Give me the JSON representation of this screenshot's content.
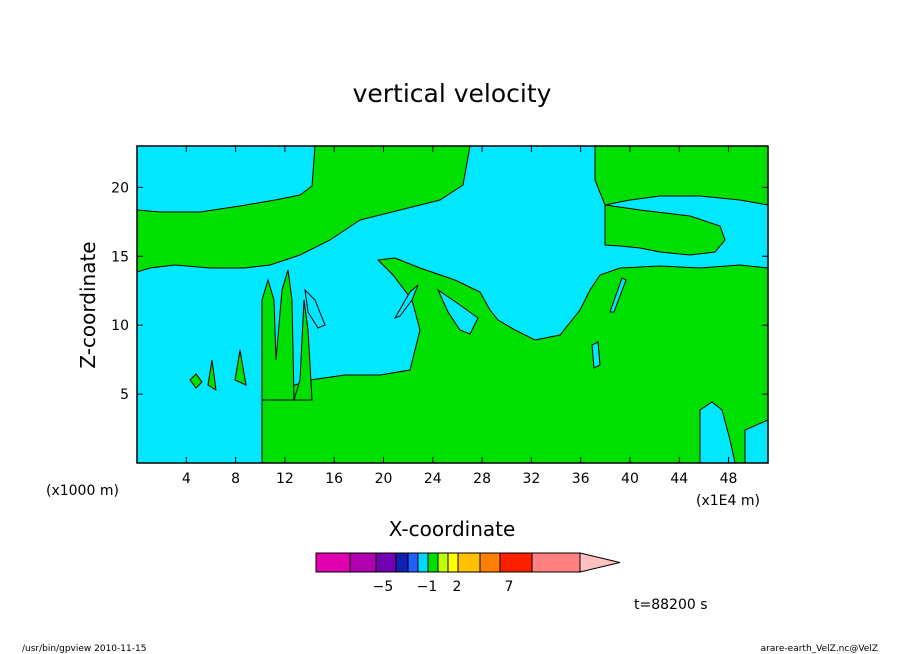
{
  "chart_data": {
    "type": "heatmap",
    "title": "vertical velocity",
    "xlabel": "X-coordinate",
    "ylabel": "Z-coordinate",
    "x_scale_note": "(x1000 m)",
    "x_unit_note": "(x1E4 m)",
    "x_ticks": [
      4,
      8,
      12,
      16,
      20,
      24,
      28,
      32,
      36,
      40,
      44,
      48
    ],
    "y_ticks": [
      5,
      10,
      15,
      20
    ],
    "xlim": [
      0,
      51.2
    ],
    "ylim": [
      0,
      23
    ],
    "grid": false,
    "legend_placement": "bottom-center",
    "colorbar": {
      "colors": [
        "#e000b0",
        "#b000b0",
        "#7000b0",
        "#1020b0",
        "#2060ff",
        "#00d8ff",
        "#00e000",
        "#c0ff00",
        "#ffff00",
        "#ffc000",
        "#ff8000",
        "#ff2000",
        "#ff8080",
        "#ffc0c0"
      ],
      "labels": [
        {
          "value": -5,
          "text": "−5"
        },
        {
          "value": -1,
          "text": "−1"
        },
        {
          "value": 2,
          "text": "2"
        },
        {
          "value": 7,
          "text": "7"
        }
      ]
    },
    "region_colors": {
      "background": "#00e8ff",
      "updraft": "#00e000"
    },
    "time_label": "t=88200 s"
  },
  "footer": {
    "left": "/usr/bin/gpview   2010-11-15",
    "right": "arare-earth_VelZ.nc@VelZ"
  }
}
